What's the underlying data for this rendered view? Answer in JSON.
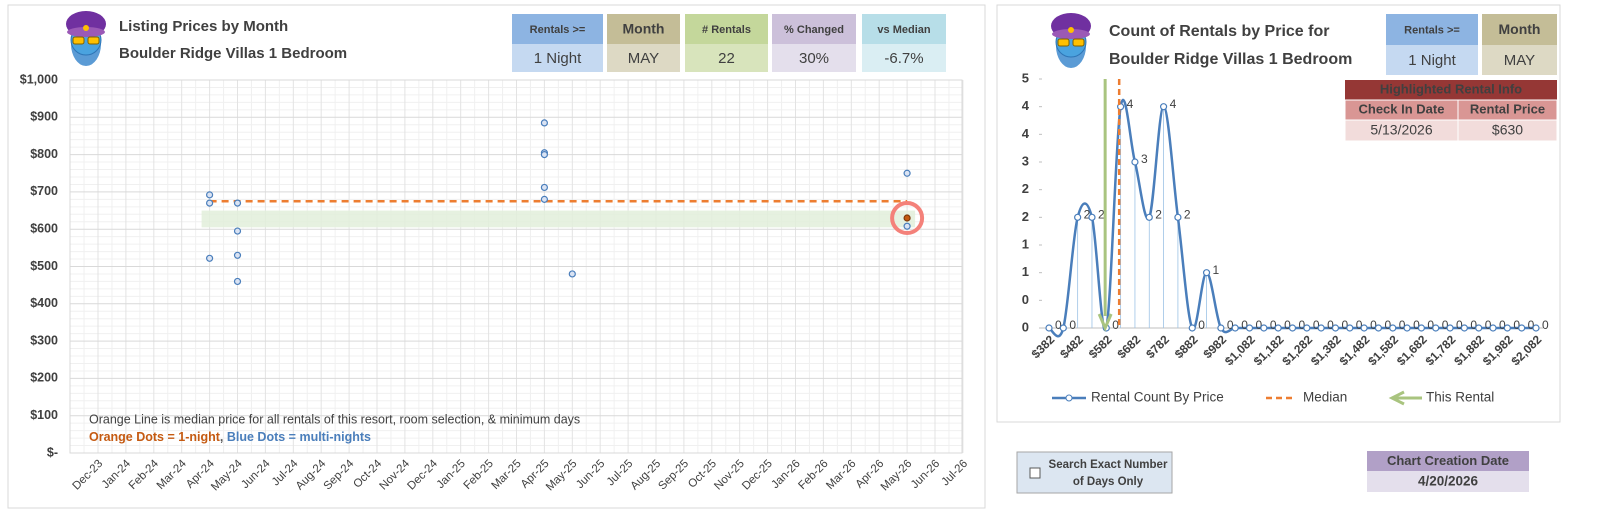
{
  "chart_data": [
    {
      "type": "scatter",
      "title": "Listing Prices by Month",
      "subtitle": "Boulder Ridge Villas 1 Bedroom",
      "categories": [
        "Dec-23",
        "Jan-24",
        "Feb-24",
        "Mar-24",
        "Apr-24",
        "May-24",
        "Jun-24",
        "Jul-24",
        "Aug-24",
        "Sep-24",
        "Oct-24",
        "Nov-24",
        "Dec-24",
        "Jan-25",
        "Feb-25",
        "Mar-25",
        "Apr-25",
        "May-25",
        "Jun-25",
        "Jul-25",
        "Aug-25",
        "Sep-25",
        "Oct-25",
        "Nov-25",
        "Dec-25",
        "Jan-26",
        "Feb-26",
        "Mar-26",
        "Apr-26",
        "May-26",
        "Jun-26",
        "Jul-26"
      ],
      "series": [
        {
          "color": "#4a7ebb",
          "x": [
            "Apr-24",
            "Apr-24",
            "Apr-24",
            "May-24",
            "May-24",
            "May-24",
            "May-24",
            "Apr-25",
            "Apr-25",
            "Apr-25",
            "Apr-25",
            "Apr-25",
            "May-25",
            "May-26",
            "May-26"
          ],
          "values": [
            522,
            692,
            670,
            670,
            595,
            530,
            460,
            712,
            680,
            885,
            805,
            800,
            480,
            750,
            608
          ]
        },
        {
          "color": "#c55a11",
          "x": [
            "May-26"
          ],
          "values": [
            630
          ]
        }
      ],
      "median": 675,
      "median_color": "#ed7d31",
      "band": [
        605,
        650
      ],
      "ylim": [
        0,
        1000
      ],
      "yticks": [
        {
          "value": 0,
          "label": "$-"
        },
        {
          "value": 100,
          "label": "$100"
        },
        {
          "value": 200,
          "label": "$200"
        },
        {
          "value": 300,
          "label": "$300"
        },
        {
          "value": 400,
          "label": "$400"
        },
        {
          "value": 500,
          "label": "$500"
        },
        {
          "value": 600,
          "label": "$600"
        },
        {
          "value": 700,
          "label": "$700"
        },
        {
          "value": 800,
          "label": "$800"
        },
        {
          "value": 900,
          "label": "$900"
        },
        {
          "value": 1000,
          "label": "$1,000"
        }
      ],
      "grid": true,
      "note": "Orange Line is median price for all rentals of this resort, room selection, & minimum days",
      "key": [
        {
          "text": "Orange Dots = 1-night",
          "color": "#c55a11"
        },
        {
          "text": ", ",
          "color": "#595959"
        },
        {
          "text": "Blue Dots = multi-nights",
          "color": "#4a7ebb"
        }
      ]
    },
    {
      "type": "line",
      "title": "Count of Rentals by Price for",
      "subtitle": "Boulder Ridge Villas 1 Bedroom",
      "categories": [
        "$382",
        null,
        "$482",
        null,
        "$582",
        null,
        "$682",
        null,
        "$782",
        null,
        "$882",
        null,
        "$982",
        null,
        "$1,082",
        null,
        "$1,182",
        null,
        "$1,282",
        null,
        "$1,382",
        null,
        "$1,482",
        null,
        "$1,582",
        null,
        "$1,682",
        null,
        "$1,782",
        null,
        "$1,882",
        null,
        "$1,982",
        null,
        "$2,082"
      ],
      "xlim": [
        382,
        2082
      ],
      "series": [
        {
          "name": "Rental Count By Price",
          "color": "#4a7ebb",
          "values": [
            0,
            0,
            2,
            2,
            0,
            4,
            3,
            2,
            4,
            2,
            0,
            1,
            0,
            0,
            0,
            0,
            0,
            0,
            0,
            0,
            0,
            0,
            0,
            0,
            0,
            0,
            0,
            0,
            0,
            0,
            0,
            0,
            0,
            0,
            0
          ]
        }
      ],
      "median": {
        "name": "Median",
        "color": "#ed7d31",
        "value": 627
      },
      "this_rental": {
        "name": "This Rental",
        "color": "#a9c47f",
        "value": 578
      },
      "ylim": [
        0,
        4.5
      ],
      "yticks": [
        0,
        {
          "value": 0.5,
          "label": "0"
        },
        1,
        {
          "value": 1.5,
          "label": "1"
        },
        2,
        {
          "value": 2.5,
          "label": "2"
        },
        3,
        {
          "value": 3.5,
          "label": "4"
        },
        4,
        {
          "value": 4.5,
          "label": "5"
        }
      ]
    }
  ],
  "left_stats": [
    {
      "label": "Rentals >=",
      "value": "1 Night",
      "color": "#8db4e2",
      "light": "#c5d9f1"
    },
    {
      "label": "Month",
      "value": "MAY",
      "color": "#c4bd97",
      "light": "#ddd9c4"
    },
    {
      "label": "# Rentals",
      "value": "22",
      "color": "#c4d79b",
      "light": "#d8e4bc"
    },
    {
      "label": "% Changed",
      "value": "30%",
      "color": "#ccc0da",
      "light": "#e4dfec"
    },
    {
      "label": "vs Median",
      "value": "-6.7%",
      "color": "#b7dee8",
      "light": "#daeef3"
    }
  ],
  "right_stats": [
    {
      "label": "Rentals >=",
      "value": "1 Night",
      "color": "#8db4e2",
      "light": "#c5d9f1"
    },
    {
      "label": "Month",
      "value": "MAY",
      "color": "#c4bd97",
      "light": "#ddd9c4"
    }
  ],
  "highlight": {
    "title": "Highlighted Rental Info",
    "headers": [
      "Check In Date",
      "Rental Price"
    ],
    "values": [
      "5/13/2026",
      "$630"
    ]
  },
  "search_option": [
    "Search Exact Number",
    "of Days Only"
  ],
  "creation": {
    "label": "Chart Creation Date",
    "value": "4/20/2026"
  }
}
